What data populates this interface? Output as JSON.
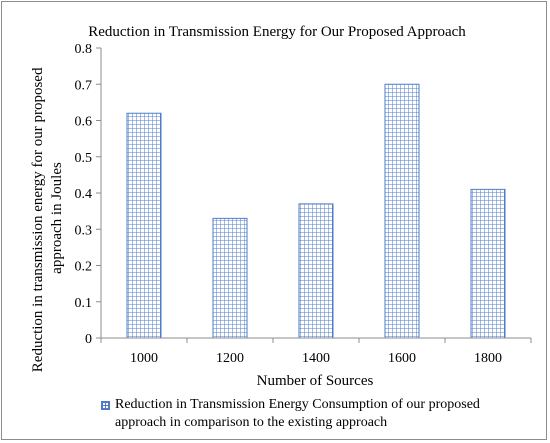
{
  "chart_data": {
    "type": "bar",
    "title": "Reduction in  Transmission Energy for Our Proposed Approach",
    "xlabel": "Number of Sources",
    "ylabel_lines": [
      "Reduction in transmission energy for our proposed",
      "approach in Joules"
    ],
    "categories": [
      "1000",
      "1200",
      "1400",
      "1600",
      "1800"
    ],
    "series": [
      {
        "name": "Reduction in Transmission Energy Consumption of our proposed approach in comparison to the existing approach",
        "values": [
          0.62,
          0.33,
          0.37,
          0.7,
          0.41
        ]
      }
    ],
    "ylim": [
      0,
      0.8
    ],
    "yticks": [
      "0",
      "0.1",
      "0.2",
      "0.3",
      "0.4",
      "0.5",
      "0.6",
      "0.7",
      "0.8"
    ],
    "grid": false,
    "legend_position": "bottom",
    "bar_pattern": "grid-hatch",
    "colors": {
      "bar_line": "#4f7cc9",
      "axis": "#8c8c8c"
    }
  }
}
